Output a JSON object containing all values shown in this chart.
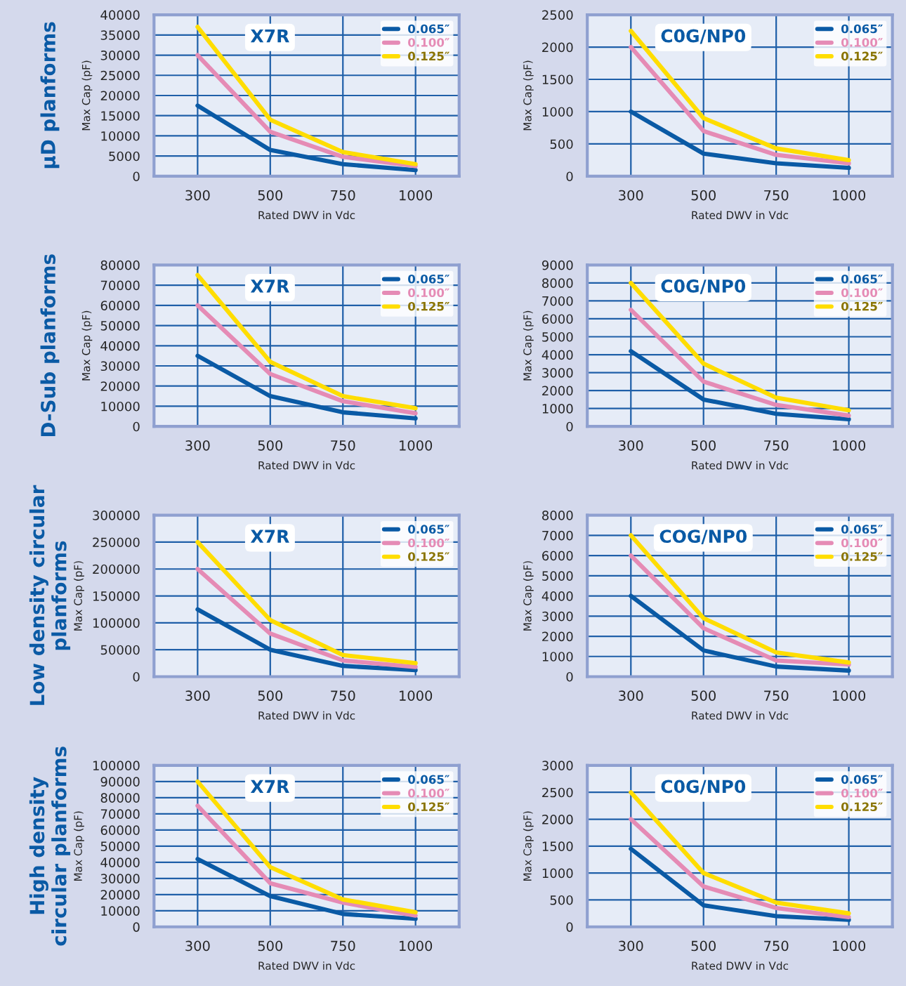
{
  "chart_data": [
    {
      "type": "line",
      "title": "X7R",
      "annotations": [
        "µD planforms"
      ],
      "xlabel": "Rated DWV in Vdc",
      "ylabel": "Max Cap (pF)",
      "categories": [
        "300",
        "500",
        "750",
        "1000"
      ],
      "ylim": [
        0,
        40000
      ],
      "yticks": [
        0,
        5000,
        10000,
        15000,
        20000,
        25000,
        30000,
        35000,
        40000
      ],
      "grid": true,
      "legend": "top right",
      "series": [
        {
          "name": "0.065″",
          "color": "#0a5aa5",
          "values": [
            17500,
            6500,
            3000,
            1500
          ]
        },
        {
          "name": "0.100″",
          "color": "#e58bb5",
          "values": [
            30000,
            11000,
            4800,
            2500
          ]
        },
        {
          "name": "0.125″",
          "color": "#ffdd00",
          "values": [
            37000,
            14000,
            6000,
            3000
          ]
        }
      ]
    },
    {
      "type": "line",
      "title": "C0G/NP0",
      "xlabel": "Rated DWV in Vdc",
      "ylabel": "Max Cap (pF)",
      "categories": [
        "300",
        "500",
        "750",
        "1000"
      ],
      "ylim": [
        0,
        2500
      ],
      "yticks": [
        0,
        500,
        1000,
        1500,
        2000,
        2500
      ],
      "grid": true,
      "legend": "top right",
      "series": [
        {
          "name": "0.065″",
          "color": "#0a5aa5",
          "values": [
            1000,
            350,
            200,
            130
          ]
        },
        {
          "name": "0.100″",
          "color": "#e58bb5",
          "values": [
            2000,
            700,
            330,
            200
          ]
        },
        {
          "name": "0.125″",
          "color": "#ffdd00",
          "values": [
            2250,
            900,
            430,
            250
          ]
        }
      ]
    },
    {
      "type": "line",
      "title": "X7R",
      "annotations": [
        "D-Sub planforms"
      ],
      "xlabel": "Rated DWV in Vdc",
      "ylabel": "Max Cap (pF)",
      "categories": [
        "300",
        "500",
        "750",
        "1000"
      ],
      "ylim": [
        0,
        80000
      ],
      "yticks": [
        0,
        10000,
        20000,
        30000,
        40000,
        50000,
        60000,
        70000,
        80000
      ],
      "grid": true,
      "legend": "top right",
      "series": [
        {
          "name": "0.065″",
          "color": "#0a5aa5",
          "values": [
            35000,
            15000,
            7000,
            4000
          ]
        },
        {
          "name": "0.100″",
          "color": "#e58bb5",
          "values": [
            60000,
            26000,
            12500,
            6500
          ]
        },
        {
          "name": "0.125″",
          "color": "#ffdd00",
          "values": [
            75000,
            32000,
            15000,
            9000
          ]
        }
      ]
    },
    {
      "type": "line",
      "title": "C0G/NP0",
      "xlabel": "Rated DWV in Vdc",
      "ylabel": "Max Cap (pF)",
      "categories": [
        "300",
        "500",
        "750",
        "1000"
      ],
      "ylim": [
        0,
        9000
      ],
      "yticks": [
        0,
        1000,
        2000,
        3000,
        4000,
        5000,
        6000,
        7000,
        8000,
        9000
      ],
      "grid": true,
      "legend": "top right",
      "series": [
        {
          "name": "0.065″",
          "color": "#0a5aa5",
          "values": [
            4200,
            1500,
            700,
            400
          ]
        },
        {
          "name": "0.100″",
          "color": "#e58bb5",
          "values": [
            6500,
            2500,
            1200,
            600
          ]
        },
        {
          "name": "0.125″",
          "color": "#ffdd00",
          "values": [
            8000,
            3500,
            1600,
            900
          ]
        }
      ]
    },
    {
      "type": "line",
      "title": "X7R",
      "annotations": [
        "Low density circular planforms"
      ],
      "xlabel": "Rated DWV in Vdc",
      "ylabel": "Max Cap (pF)",
      "categories": [
        "300",
        "500",
        "750",
        "1000"
      ],
      "ylim": [
        0,
        300000
      ],
      "yticks": [
        0,
        50000,
        100000,
        150000,
        200000,
        250000,
        300000
      ],
      "grid": true,
      "legend": "top right",
      "series": [
        {
          "name": "0.065″",
          "color": "#0a5aa5",
          "values": [
            125000,
            50000,
            20000,
            12000
          ]
        },
        {
          "name": "0.100″",
          "color": "#e58bb5",
          "values": [
            200000,
            80000,
            30000,
            18000
          ]
        },
        {
          "name": "0.125″",
          "color": "#ffdd00",
          "values": [
            250000,
            105000,
            40000,
            25000
          ]
        }
      ]
    },
    {
      "type": "line",
      "title": "COG/NP0",
      "xlabel": "Rated DWV in Vdc",
      "ylabel": "Max Cap (pF)",
      "categories": [
        "300",
        "500",
        "750",
        "1000"
      ],
      "ylim": [
        0,
        8000
      ],
      "yticks": [
        0,
        1000,
        2000,
        3000,
        4000,
        5000,
        6000,
        7000,
        8000
      ],
      "grid": true,
      "legend": "top right",
      "series": [
        {
          "name": "0.065″",
          "color": "#0a5aa5",
          "values": [
            4000,
            1300,
            500,
            300
          ]
        },
        {
          "name": "0.100″",
          "color": "#e58bb5",
          "values": [
            6000,
            2400,
            800,
            600
          ]
        },
        {
          "name": "0.125″",
          "color": "#ffdd00",
          "values": [
            7000,
            2900,
            1200,
            700
          ]
        }
      ]
    },
    {
      "type": "line",
      "title": "X7R",
      "annotations": [
        "High density circular planforms"
      ],
      "xlabel": "Rated DWV in Vdc",
      "ylabel": "Max Cap (pF)",
      "categories": [
        "300",
        "500",
        "750",
        "1000"
      ],
      "ylim": [
        0,
        100000
      ],
      "yticks": [
        0,
        10000,
        20000,
        30000,
        40000,
        50000,
        60000,
        70000,
        80000,
        90000,
        100000
      ],
      "grid": true,
      "legend": "top right",
      "series": [
        {
          "name": "0.065″",
          "color": "#0a5aa5",
          "values": [
            42000,
            19000,
            8000,
            5000
          ]
        },
        {
          "name": "0.100″",
          "color": "#e58bb5",
          "values": [
            75000,
            27000,
            15000,
            7000
          ]
        },
        {
          "name": "0.125″",
          "color": "#ffdd00",
          "values": [
            90000,
            37000,
            17000,
            9000
          ]
        }
      ]
    },
    {
      "type": "line",
      "title": "C0G/NP0",
      "xlabel": "Rated DWV in Vdc",
      "ylabel": "Max Cap (pF)",
      "categories": [
        "300",
        "500",
        "750",
        "1000"
      ],
      "ylim": [
        0,
        3000
      ],
      "yticks": [
        0,
        500,
        1000,
        1500,
        2000,
        2500,
        3000
      ],
      "grid": true,
      "legend": "top right",
      "series": [
        {
          "name": "0.065″",
          "color": "#0a5aa5",
          "values": [
            1450,
            400,
            200,
            130
          ]
        },
        {
          "name": "0.100″",
          "color": "#e58bb5",
          "values": [
            2000,
            750,
            350,
            180
          ]
        },
        {
          "name": "0.125″",
          "color": "#ffdd00",
          "values": [
            2500,
            1000,
            450,
            250
          ]
        }
      ]
    }
  ]
}
